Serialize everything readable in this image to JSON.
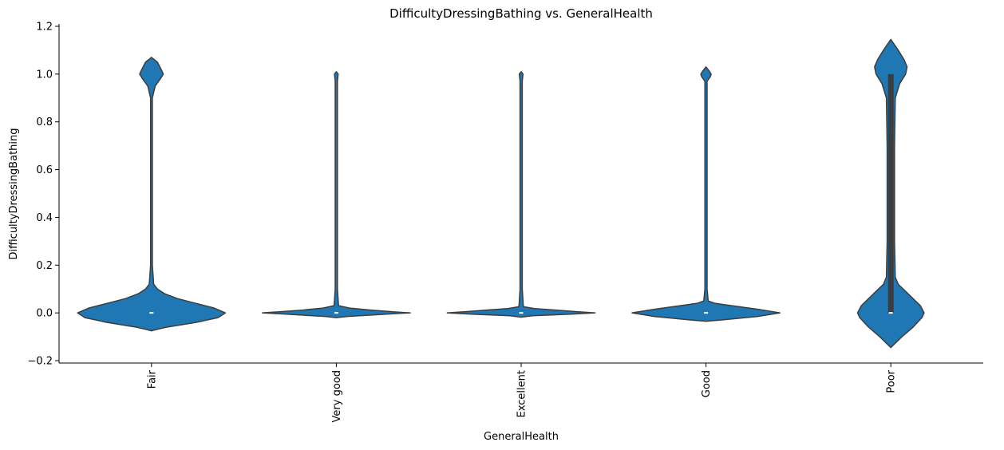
{
  "chart_data": {
    "type": "violin",
    "title": "DifficultyDressingBathing vs. GeneralHealth",
    "xlabel": "GeneralHealth",
    "ylabel": "DifficultyDressingBathing",
    "categories": [
      "Fair",
      "Very good",
      "Excellent",
      "Good",
      "Poor"
    ],
    "ylim": [
      -0.21,
      1.21
    ],
    "yticks": [
      "−0.2",
      "0.0",
      "0.2",
      "0.4",
      "0.6",
      "0.8",
      "1.0",
      "1.2"
    ],
    "ytick_values": [
      -0.2,
      0.0,
      0.2,
      0.4,
      0.6,
      0.8,
      1.0,
      1.2
    ],
    "x_tick_rotation": 90,
    "grid": false,
    "colors": {
      "fill": "#1f77b4",
      "edge": "#3d3d3d",
      "median": "#ffffff",
      "box": "#3d3d3d"
    },
    "violins": [
      {
        "category": "Fair",
        "median": 0.0,
        "quartiles": [
          0.0,
          0.0
        ],
        "profile": [
          [
            -0.075,
            0
          ],
          [
            -0.07,
            0.06
          ],
          [
            -0.06,
            0.2
          ],
          [
            -0.04,
            0.6
          ],
          [
            -0.02,
            0.9
          ],
          [
            0.0,
            1.0
          ],
          [
            0.02,
            0.85
          ],
          [
            0.04,
            0.6
          ],
          [
            0.06,
            0.35
          ],
          [
            0.08,
            0.18
          ],
          [
            0.1,
            0.08
          ],
          [
            0.12,
            0.03
          ],
          [
            0.2,
            0.012
          ],
          [
            0.9,
            0.012
          ],
          [
            0.95,
            0.05
          ],
          [
            0.98,
            0.12
          ],
          [
            1.0,
            0.16
          ],
          [
            1.02,
            0.13
          ],
          [
            1.05,
            0.08
          ],
          [
            1.07,
            0
          ]
        ]
      },
      {
        "category": "Very good",
        "median": 0.0,
        "quartiles": [
          0.0,
          0.0
        ],
        "profile": [
          [
            -0.02,
            0
          ],
          [
            -0.015,
            0.15
          ],
          [
            -0.005,
            0.7
          ],
          [
            0.0,
            1.0
          ],
          [
            0.005,
            0.75
          ],
          [
            0.012,
            0.45
          ],
          [
            0.02,
            0.18
          ],
          [
            0.03,
            0.03
          ],
          [
            0.1,
            0.015
          ],
          [
            0.97,
            0.015
          ],
          [
            1.0,
            0.025
          ],
          [
            1.01,
            0
          ]
        ]
      },
      {
        "category": "Excellent",
        "median": 0.0,
        "quartiles": [
          0.0,
          0.0
        ],
        "profile": [
          [
            -0.018,
            0
          ],
          [
            -0.012,
            0.15
          ],
          [
            -0.005,
            0.7
          ],
          [
            0.0,
            1.0
          ],
          [
            0.005,
            0.75
          ],
          [
            0.012,
            0.45
          ],
          [
            0.018,
            0.18
          ],
          [
            0.026,
            0.03
          ],
          [
            0.1,
            0.015
          ],
          [
            0.97,
            0.015
          ],
          [
            1.0,
            0.025
          ],
          [
            1.01,
            0
          ]
        ]
      },
      {
        "category": "Good",
        "median": 0.0,
        "quartiles": [
          0.0,
          0.0
        ],
        "profile": [
          [
            -0.035,
            0
          ],
          [
            -0.03,
            0.2
          ],
          [
            -0.015,
            0.7
          ],
          [
            0.0,
            1.0
          ],
          [
            0.015,
            0.7
          ],
          [
            0.03,
            0.35
          ],
          [
            0.04,
            0.12
          ],
          [
            0.05,
            0.03
          ],
          [
            0.1,
            0.015
          ],
          [
            0.97,
            0.015
          ],
          [
            0.99,
            0.06
          ],
          [
            1.0,
            0.07
          ],
          [
            1.01,
            0.05
          ],
          [
            1.03,
            0
          ]
        ]
      },
      {
        "category": "Poor",
        "median": 0.0,
        "quartiles": [
          0.0,
          1.0
        ],
        "profile": [
          [
            -0.145,
            0
          ],
          [
            -0.13,
            0.05
          ],
          [
            -0.1,
            0.15
          ],
          [
            -0.06,
            0.3
          ],
          [
            -0.02,
            0.42
          ],
          [
            0.0,
            0.45
          ],
          [
            0.03,
            0.4
          ],
          [
            0.06,
            0.3
          ],
          [
            0.09,
            0.2
          ],
          [
            0.12,
            0.1
          ],
          [
            0.15,
            0.06
          ],
          [
            0.3,
            0.05
          ],
          [
            0.7,
            0.05
          ],
          [
            0.9,
            0.06
          ],
          [
            0.96,
            0.12
          ],
          [
            1.0,
            0.2
          ],
          [
            1.03,
            0.22
          ],
          [
            1.06,
            0.18
          ],
          [
            1.1,
            0.1
          ],
          [
            1.145,
            0
          ]
        ]
      }
    ]
  }
}
